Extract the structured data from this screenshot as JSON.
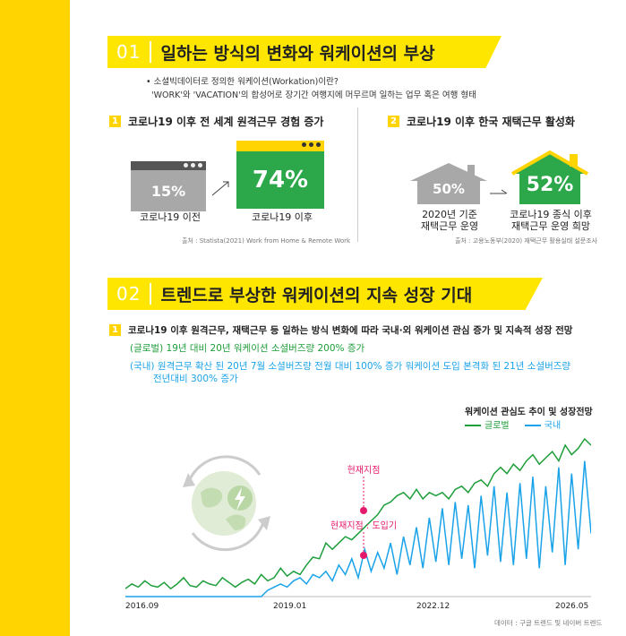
{
  "section1": {
    "num": "01",
    "title_pre": "일하는 방식의 변화와 ",
    "title_bold": "워케이션",
    "title_post": "의 부상",
    "def_q": "• 소셜빅데이터로 정의한 워케이션(Workation)이란?",
    "def_a": "'WORK'와 'VACATION'의 합성어로 장기간 여행지에 머무르며 일하는 업무 혹은 여행 형태",
    "left": {
      "num": "1",
      "title": "코로나19 이후 전 세계 원격근무 경험 증가",
      "before_pct": "15%",
      "after_pct": "74%",
      "before_label": "코로나19 이전",
      "after_label": "코로나19 이후",
      "source": "출처 : Statista(2021) Work from Home & Remote Work"
    },
    "right": {
      "num": "2",
      "title": "코로나19 이후 한국 재택근무 활성화",
      "before_pct": "50%",
      "after_pct": "52%",
      "before_label_1": "2020년 기준",
      "before_label_2": "재택근무 운영",
      "after_label_1": "코로나19 종식 이후",
      "after_label_2": "재택근무 운영 희망",
      "source": "출처 : 고용노동부(2020) 재택근무 활용실태 설문조사"
    }
  },
  "section2": {
    "num": "02",
    "title_pre": "트렌드로 부상한 ",
    "title_bold": "워케이션",
    "title_post": "의 지속 성장 기대",
    "item_num": "1",
    "item_title": "코로나19 이후 원격근무, 재택근무 등 일하는 방식 변화에 따라 국내·외 워케이션 관심 증가 및 지속적 성장 전망",
    "global_line": "(글로벌) 19년 대비 20년 워케이션 소셜버즈량 200% 증가",
    "domestic_line_1": "(국내) 원격근무 확산 된 20년 7월 소셜버즈량 전월 대비 100% 증가 워케이션 도입 본격화 된 21년 소셜버즈량",
    "domestic_line_2": "전년대비 300% 증가"
  },
  "chart_data": {
    "type": "line",
    "title": "워케이션 관심도 추이 및 성장전망",
    "legend_position": "top-right",
    "x_ticks": [
      "2016.09",
      "2019.01",
      "2022.12",
      "2026.05"
    ],
    "series": [
      {
        "name": "글로벌",
        "color": "#1e9e3a",
        "values": [
          5,
          8,
          6,
          10,
          7,
          6,
          9,
          5,
          8,
          12,
          7,
          6,
          10,
          8,
          7,
          12,
          9,
          6,
          9,
          11,
          8,
          14,
          10,
          12,
          18,
          13,
          16,
          14,
          20,
          25,
          24,
          34,
          30,
          34,
          38,
          36,
          40,
          44,
          48,
          52,
          58,
          60,
          64,
          66,
          62,
          68,
          62,
          66,
          64,
          66,
          62,
          68,
          70,
          66,
          72,
          74,
          70,
          78,
          82,
          78,
          84,
          80,
          86,
          90,
          84,
          88,
          92,
          86,
          96,
          90,
          94,
          100,
          96
        ]
      },
      {
        "name": "국내",
        "color": "#1aa3e8",
        "values": [
          0,
          0,
          0,
          0,
          0,
          0,
          0,
          0,
          0,
          0,
          0,
          0,
          0,
          0,
          0,
          0,
          0,
          0,
          0,
          0,
          0,
          0,
          4,
          6,
          8,
          6,
          10,
          12,
          8,
          14,
          12,
          16,
          10,
          20,
          14,
          24,
          12,
          30,
          16,
          28,
          18,
          34,
          14,
          38,
          20,
          44,
          18,
          50,
          22,
          56,
          20,
          60,
          24,
          58,
          18,
          64,
          26,
          70,
          22,
          66,
          20,
          72,
          24,
          76,
          18,
          70,
          28,
          82,
          20,
          78,
          30,
          86,
          40
        ]
      }
    ],
    "annotations": [
      "현재지점",
      "현재지점 : 도입기"
    ],
    "source": "데이터 : 구글 트렌드 및 네이버 트렌드"
  }
}
